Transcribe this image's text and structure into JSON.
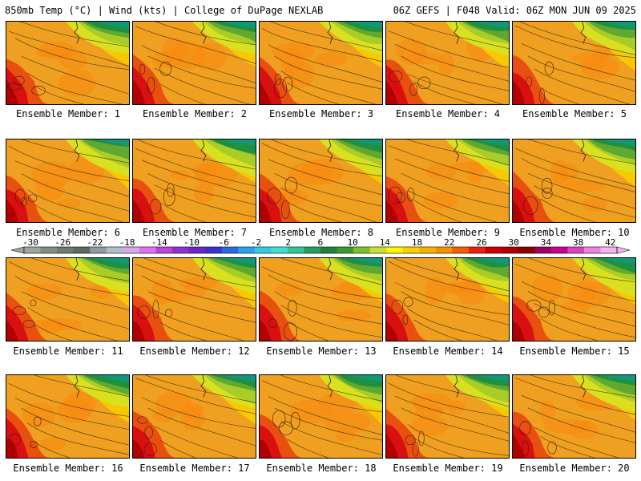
{
  "header": {
    "title_left": "850mb Temp (°C) | Wind (kts) | College of DuPage NEXLAB",
    "title_right": "06Z GEFS | F048 Valid: 06Z MON JUN 09 2025"
  },
  "panels": [
    {
      "label": "Ensemble Member: 1"
    },
    {
      "label": "Ensemble Member: 2"
    },
    {
      "label": "Ensemble Member: 3"
    },
    {
      "label": "Ensemble Member: 4"
    },
    {
      "label": "Ensemble Member: 5"
    },
    {
      "label": "Ensemble Member: 6"
    },
    {
      "label": "Ensemble Member: 7"
    },
    {
      "label": "Ensemble Member: 8"
    },
    {
      "label": "Ensemble Member: 9"
    },
    {
      "label": "Ensemble Member: 10"
    },
    {
      "label": "Ensemble Member: 11"
    },
    {
      "label": "Ensemble Member: 12"
    },
    {
      "label": "Ensemble Member: 13"
    },
    {
      "label": "Ensemble Member: 14"
    },
    {
      "label": "Ensemble Member: 15"
    },
    {
      "label": "Ensemble Member: 16"
    },
    {
      "label": "Ensemble Member: 17"
    },
    {
      "label": "Ensemble Member: 18"
    },
    {
      "label": "Ensemble Member: 19"
    },
    {
      "label": "Ensemble Member: 20"
    }
  ],
  "colorbar": {
    "tick_labels": [
      "-30",
      "-26",
      "-22",
      "-18",
      "-14",
      "-10",
      "-6",
      "-2",
      "2",
      "6",
      "10",
      "14",
      "18",
      "22",
      "26",
      "30",
      "34",
      "38",
      "42"
    ],
    "colors": [
      "#9aa79a",
      "#7f8f7f",
      "#6d7a6d",
      "#5e6a5e",
      "#909aa0",
      "#b3bcc8",
      "#d6a8e8",
      "#e070f0",
      "#c040e0",
      "#9030d0",
      "#6a28c8",
      "#3a32d0",
      "#2a6ae0",
      "#2aa0f0",
      "#30c8e8",
      "#40e0d0",
      "#30c890",
      "#20a060",
      "#208040",
      "#3a9a30",
      "#7ec02a",
      "#c8e030",
      "#f8f800",
      "#f8d000",
      "#f8b000",
      "#f89000",
      "#f06000",
      "#e82010",
      "#d00000",
      "#b00000",
      "#8a0000",
      "#a00060",
      "#c80090",
      "#e040c0",
      "#f080e0",
      "#f8b0f0"
    ]
  }
}
